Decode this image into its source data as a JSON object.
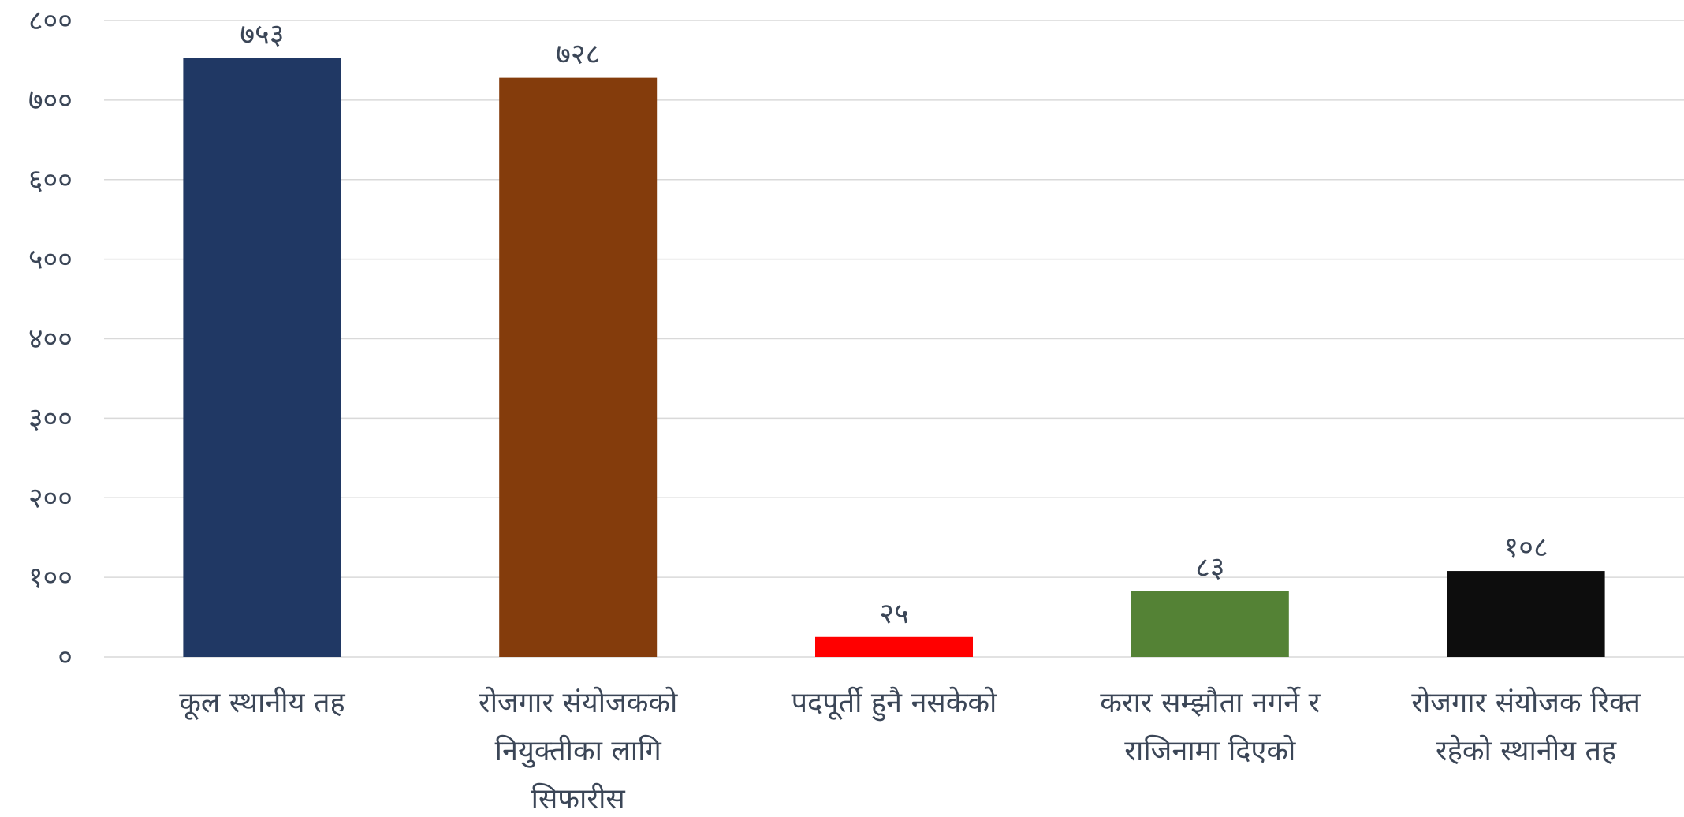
{
  "chart_data": {
    "type": "bar",
    "title": "",
    "xlabel": "",
    "ylabel": "",
    "ylim": [
      0,
      800
    ],
    "yticks": [
      0,
      100,
      200,
      300,
      400,
      500,
      600,
      700,
      800
    ],
    "ytick_labels": [
      "०",
      "१००",
      "२००",
      "३००",
      "४००",
      "५००",
      "६००",
      "७००",
      "८००"
    ],
    "grid": true,
    "legend": "none",
    "categories": [
      [
        "कूल स्थानीय तह"
      ],
      [
        "रोजगार संयोजकको",
        "नियुक्तीका लागि",
        "सिफारीस"
      ],
      [
        "पदपूर्ती हुनै नसकेको"
      ],
      [
        "करार सम्झौता नगर्ने र",
        "राजिनामा दिएको"
      ],
      [
        "रोजगार संयोजक रिक्त",
        "रहेको स्थानीय तह"
      ]
    ],
    "values": [
      753,
      728,
      25,
      83,
      108
    ],
    "value_labels": [
      "७५३",
      "७२८",
      "२५",
      "८३",
      "१०८"
    ],
    "colors": [
      "#203864",
      "#843c0c",
      "#ff0000",
      "#548235",
      "#0d0d0d"
    ]
  }
}
